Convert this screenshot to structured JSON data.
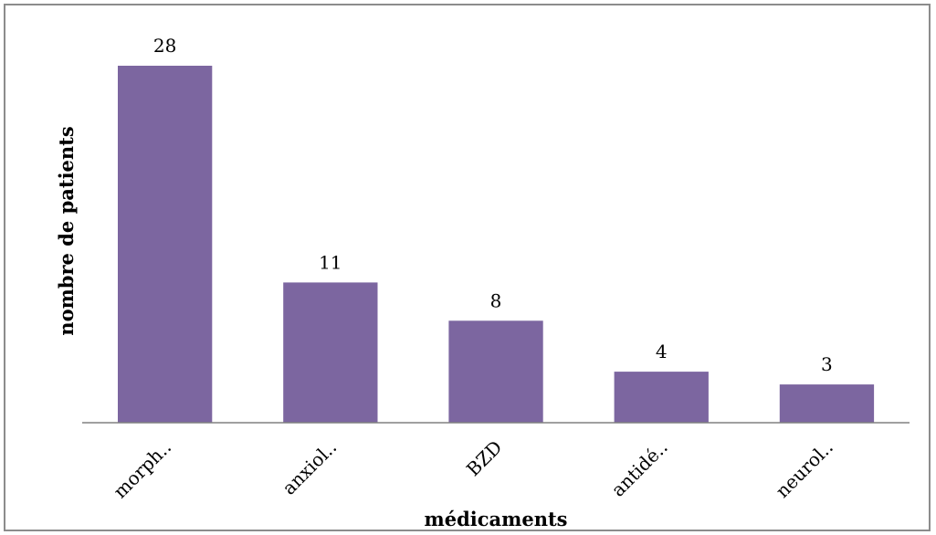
{
  "chart_data": {
    "type": "bar",
    "title": "",
    "xlabel": "médicaments",
    "ylabel": "nombre de patients",
    "categories": [
      "morph..",
      "anxiol..",
      "BZD",
      "antidé..",
      "neurol.."
    ],
    "values": [
      28,
      11,
      8,
      4,
      3
    ],
    "ylim": [
      0,
      28
    ],
    "grid": false,
    "legend": "none",
    "data_labels": true,
    "colors": {
      "bar": "#7c66a0",
      "axis": "#808080",
      "border": "#8c8c8c"
    }
  }
}
